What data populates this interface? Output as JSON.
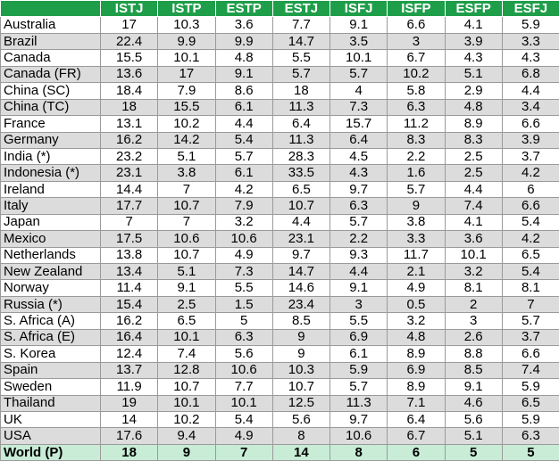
{
  "columns": [
    "",
    "ISTJ",
    "ISTP",
    "ESTP",
    "ESTJ",
    "ISFJ",
    "ISFP",
    "ESFP",
    "ESFJ"
  ],
  "rows": [
    {
      "country": "Australia",
      "values": [
        "17",
        "10.3",
        "3.6",
        "7.7",
        "9.1",
        "6.6",
        "4.1",
        "5.9"
      ]
    },
    {
      "country": "Brazil",
      "values": [
        "22.4",
        "9.9",
        "9.9",
        "14.7",
        "3.5",
        "3",
        "3.9",
        "3.3"
      ]
    },
    {
      "country": "Canada",
      "values": [
        "15.5",
        "10.1",
        "4.8",
        "5.5",
        "10.1",
        "6.7",
        "4.3",
        "4.3"
      ]
    },
    {
      "country": "Canada (FR)",
      "values": [
        "13.6",
        "17",
        "9.1",
        "5.7",
        "5.7",
        "10.2",
        "5.1",
        "6.8"
      ]
    },
    {
      "country": "China (SC)",
      "values": [
        "18.4",
        "7.9",
        "8.6",
        "18",
        "4",
        "5.8",
        "2.9",
        "4.4"
      ]
    },
    {
      "country": "China (TC)",
      "values": [
        "18",
        "15.5",
        "6.1",
        "11.3",
        "7.3",
        "6.3",
        "4.8",
        "3.4"
      ]
    },
    {
      "country": "France",
      "values": [
        "13.1",
        "10.2",
        "4.4",
        "6.4",
        "15.7",
        "11.2",
        "8.9",
        "6.6"
      ]
    },
    {
      "country": "Germany",
      "values": [
        "16.2",
        "14.2",
        "5.4",
        "11.3",
        "6.4",
        "8.3",
        "8.3",
        "3.9"
      ]
    },
    {
      "country": "India (*)",
      "values": [
        "23.2",
        "5.1",
        "5.7",
        "28.3",
        "4.5",
        "2.2",
        "2.5",
        "3.7"
      ]
    },
    {
      "country": "Indonesia (*)",
      "values": [
        "23.1",
        "3.8",
        "6.1",
        "33.5",
        "4.3",
        "1.6",
        "2.5",
        "4.2"
      ]
    },
    {
      "country": "Ireland",
      "values": [
        "14.4",
        "7",
        "4.2",
        "6.5",
        "9.7",
        "5.7",
        "4.4",
        "6"
      ]
    },
    {
      "country": "Italy",
      "values": [
        "17.7",
        "10.7",
        "7.9",
        "10.7",
        "6.3",
        "9",
        "7.4",
        "6.6"
      ]
    },
    {
      "country": "Japan",
      "values": [
        "7",
        "7",
        "3.2",
        "4.4",
        "5.7",
        "3.8",
        "4.1",
        "5.4"
      ]
    },
    {
      "country": "Mexico",
      "values": [
        "17.5",
        "10.6",
        "10.6",
        "23.1",
        "2.2",
        "3.3",
        "3.6",
        "4.2"
      ]
    },
    {
      "country": "Netherlands",
      "values": [
        "13.8",
        "10.7",
        "4.9",
        "9.7",
        "9.3",
        "11.7",
        "10.1",
        "6.5"
      ]
    },
    {
      "country": "New Zealand",
      "values": [
        "13.4",
        "5.1",
        "7.3",
        "14.7",
        "4.4",
        "2.1",
        "3.2",
        "5.4"
      ]
    },
    {
      "country": "Norway",
      "values": [
        "11.4",
        "9.1",
        "5.5",
        "14.6",
        "9.1",
        "4.9",
        "8.1",
        "8.1"
      ]
    },
    {
      "country": "Russia (*)",
      "values": [
        "15.4",
        "2.5",
        "1.5",
        "23.4",
        "3",
        "0.5",
        "2",
        "7"
      ]
    },
    {
      "country": "S. Africa (A)",
      "values": [
        "16.2",
        "6.5",
        "5",
        "8.5",
        "5.5",
        "3.2",
        "3",
        "5.7"
      ]
    },
    {
      "country": "S. Africa (E)",
      "values": [
        "16.4",
        "10.1",
        "6.3",
        "9",
        "6.9",
        "4.8",
        "2.6",
        "3.7"
      ]
    },
    {
      "country": "S. Korea",
      "values": [
        "12.4",
        "7.4",
        "5.6",
        "9",
        "6.1",
        "8.9",
        "8.8",
        "6.6"
      ]
    },
    {
      "country": "Spain",
      "values": [
        "13.7",
        "12.8",
        "10.6",
        "10.3",
        "5.9",
        "6.9",
        "8.5",
        "7.4"
      ]
    },
    {
      "country": "Sweden",
      "values": [
        "11.9",
        "10.7",
        "7.7",
        "10.7",
        "5.7",
        "8.9",
        "9.1",
        "5.9"
      ]
    },
    {
      "country": "Thailand",
      "values": [
        "19",
        "10.1",
        "10.1",
        "12.5",
        "11.3",
        "7.1",
        "4.6",
        "6.5"
      ]
    },
    {
      "country": "UK",
      "values": [
        "14",
        "10.2",
        "5.4",
        "5.6",
        "9.7",
        "6.4",
        "5.6",
        "5.9"
      ]
    },
    {
      "country": "USA",
      "values": [
        "17.6",
        "9.4",
        "4.9",
        "8",
        "10.6",
        "6.7",
        "5.1",
        "6.3"
      ]
    }
  ],
  "footer": {
    "country": "World (P)",
    "values": [
      "18",
      "9",
      "7",
      "14",
      "8",
      "6",
      "5",
      "5"
    ]
  },
  "colors": {
    "header_bg": "#1f9e4a",
    "header_text": "#ffffff",
    "stripe": "#dcdcdc",
    "footer_bg": "#c8ecd6"
  }
}
